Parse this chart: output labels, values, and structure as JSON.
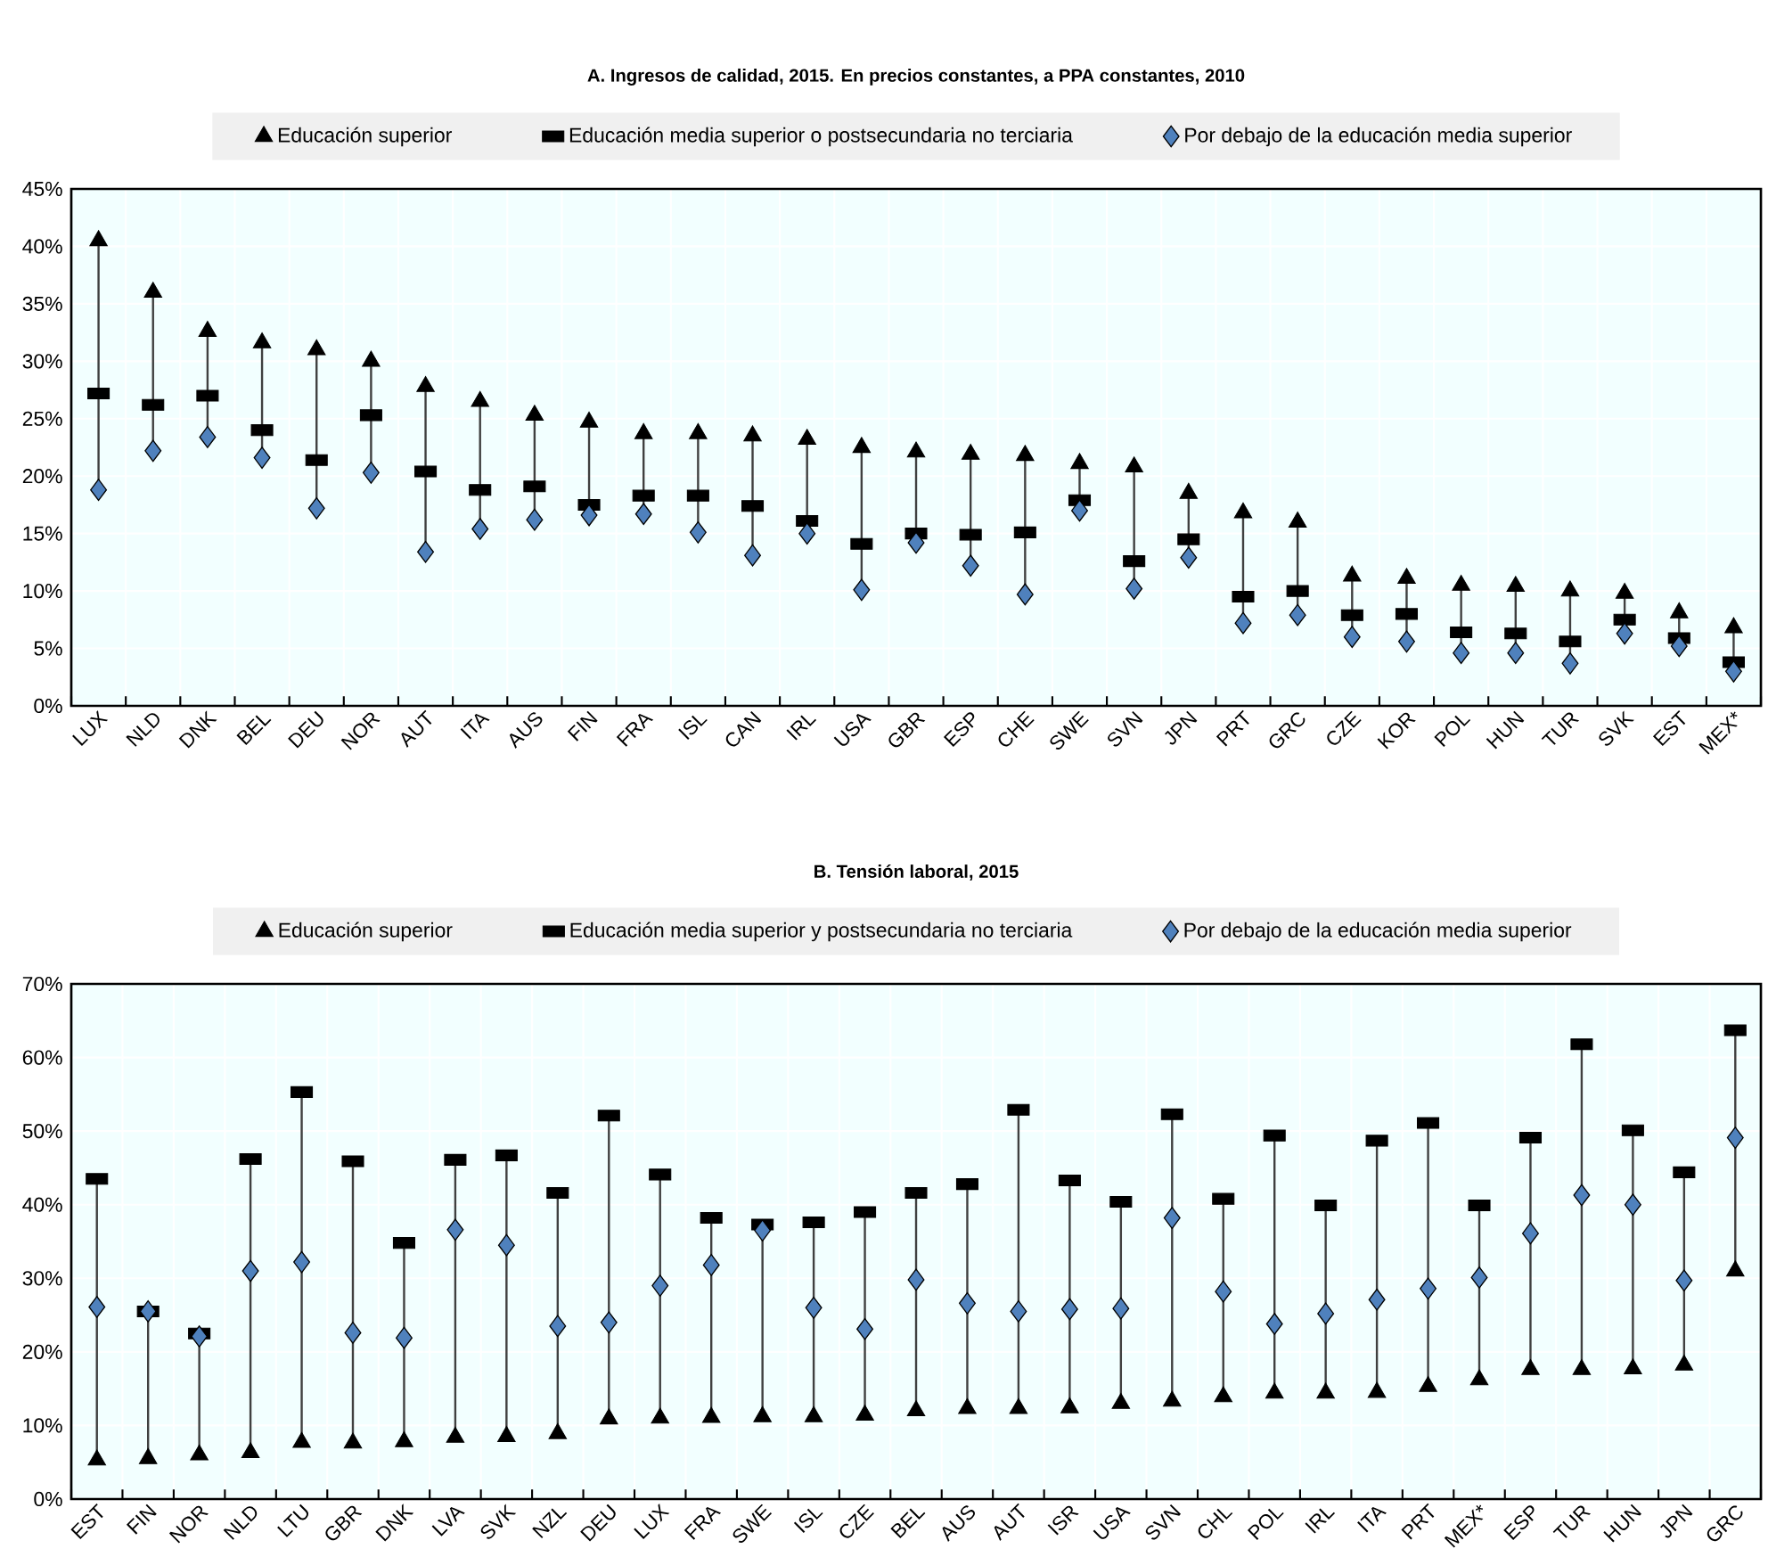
{
  "chart_data": [
    {
      "type": "scatter",
      "title": "A. Ingresos de calidad, 2015. En precios constantes, a PPA constantes, 2010",
      "categories": [
        "LUX",
        "NLD",
        "DNK",
        "BEL",
        "DEU",
        "NOR",
        "AUT",
        "ITA",
        "AUS",
        "FIN",
        "FRA",
        "ISL",
        "CAN",
        "IRL",
        "USA",
        "GBR",
        "ESP",
        "CHE",
        "SWE",
        "SVN",
        "JPN",
        "PRT",
        "GRC",
        "CZE",
        "KOR",
        "POL",
        "HUN",
        "TUR",
        "SVK",
        "EST",
        "MEX*"
      ],
      "series": [
        {
          "name": "Educación superior",
          "color": "#000000",
          "marker": "triangle",
          "values": [
            40.5,
            36,
            32.6,
            31.6,
            31,
            30,
            27.8,
            26.5,
            25.3,
            24.7,
            23.7,
            23.7,
            23.5,
            23.2,
            22.5,
            22.1,
            21.9,
            21.8,
            21.1,
            20.8,
            18.5,
            16.8,
            16,
            11.3,
            11.1,
            10.5,
            10.4,
            10,
            9.8,
            8.1,
            6.8
          ]
        },
        {
          "name": "Educación media superior o postsecundaria no terciaria",
          "color": "#000000",
          "marker": "square",
          "values": [
            27.2,
            26.2,
            27,
            24,
            21.4,
            25.3,
            20.4,
            18.8,
            19.1,
            17.5,
            18.3,
            18.3,
            17.4,
            16.1,
            14.1,
            15,
            14.9,
            15.1,
            17.9,
            12.6,
            14.5,
            9.5,
            10,
            7.9,
            8,
            6.4,
            6.3,
            5.6,
            7.5,
            5.9,
            3.8
          ]
        },
        {
          "name": "Por debajo de la educación media superior",
          "color": "#4f81bd",
          "marker": "diamond",
          "values": [
            18.8,
            22.2,
            23.4,
            21.6,
            17.2,
            20.3,
            13.4,
            15.4,
            16.2,
            16.6,
            16.7,
            15.1,
            13.1,
            15,
            10.1,
            14.2,
            12.2,
            9.7,
            17,
            10.2,
            12.9,
            7.2,
            7.9,
            6,
            5.6,
            4.6,
            4.6,
            3.7,
            6.3,
            5.2,
            3
          ]
        }
      ],
      "ylim": [
        0,
        45
      ],
      "yticks": [
        {
          "value": 0,
          "label": "0%"
        },
        {
          "value": 5,
          "label": "5%"
        },
        {
          "value": 10,
          "label": "10%"
        },
        {
          "value": 15,
          "label": "15%"
        },
        {
          "value": 20,
          "label": "20%"
        },
        {
          "value": 25,
          "label": "25%"
        },
        {
          "value": 30,
          "label": "30%"
        },
        {
          "value": 35,
          "label": "35%"
        },
        {
          "value": 40,
          "label": "40%"
        },
        {
          "value": 45,
          "label": "45%"
        }
      ],
      "grid": true,
      "legend": "top"
    },
    {
      "type": "scatter",
      "title": "B. Tensión laboral, 2015",
      "categories": [
        "EST",
        "FIN",
        "NOR",
        "NLD",
        "LTU",
        "GBR",
        "DNK",
        "LVA",
        "SVK",
        "NZL",
        "DEU",
        "LUX",
        "FRA",
        "SWE",
        "ISL",
        "CZE",
        "BEL",
        "AUS",
        "AUT",
        "ISR",
        "USA",
        "SVN",
        "CHL",
        "POL",
        "IRL",
        "ITA",
        "PRT",
        "MEX*",
        "ESP",
        "TUR",
        "HUN",
        "JPN",
        "GRC"
      ],
      "series": [
        {
          "name": "Educación superior",
          "color": "#000000",
          "marker": "triangle",
          "values": [
            5.3,
            5.5,
            6,
            6.3,
            7.7,
            7.6,
            7.8,
            8.4,
            8.5,
            8.9,
            10.9,
            11,
            11.1,
            11.2,
            11.2,
            11.4,
            12,
            12.3,
            12.3,
            12.4,
            13,
            13.3,
            13.9,
            14.4,
            14.4,
            14.5,
            15.3,
            16.2,
            17.6,
            17.6,
            17.7,
            18.2,
            31
          ]
        },
        {
          "name": "Educación media superior y postsecundaria no terciaria",
          "color": "#000000",
          "marker": "square",
          "values": [
            43.5,
            25.5,
            22.5,
            46.2,
            55.3,
            45.9,
            34.8,
            46.1,
            46.7,
            41.6,
            52.1,
            44.1,
            38.2,
            37.3,
            37.6,
            39,
            41.6,
            42.8,
            52.9,
            43.3,
            40.4,
            52.3,
            40.8,
            49.4,
            39.9,
            48.7,
            51.1,
            39.9,
            49.1,
            61.8,
            50.1,
            44.4,
            63.7
          ]
        },
        {
          "name": "Por debajo de la educación media superior",
          "color": "#4f81bd",
          "marker": "diamond",
          "values": [
            26.1,
            25.5,
            22.1,
            31,
            32.2,
            22.6,
            21.9,
            36.6,
            34.5,
            23.5,
            24,
            29,
            31.8,
            36.5,
            26,
            23.1,
            29.8,
            26.6,
            25.5,
            25.8,
            25.9,
            38.2,
            28.2,
            23.8,
            25.2,
            27.1,
            28.6,
            30.1,
            36.1,
            41.3,
            40,
            29.7,
            49.1
          ]
        }
      ],
      "ylim": [
        0,
        70
      ],
      "yticks": [
        {
          "value": 0,
          "label": "0%"
        },
        {
          "value": 10,
          "label": "10%"
        },
        {
          "value": 20,
          "label": "20%"
        },
        {
          "value": 30,
          "label": "30%"
        },
        {
          "value": 40,
          "label": "40%"
        },
        {
          "value": 50,
          "label": "50%"
        },
        {
          "value": 60,
          "label": "60%"
        },
        {
          "value": 70,
          "label": "70%"
        }
      ],
      "grid": true,
      "legend": "top"
    }
  ]
}
